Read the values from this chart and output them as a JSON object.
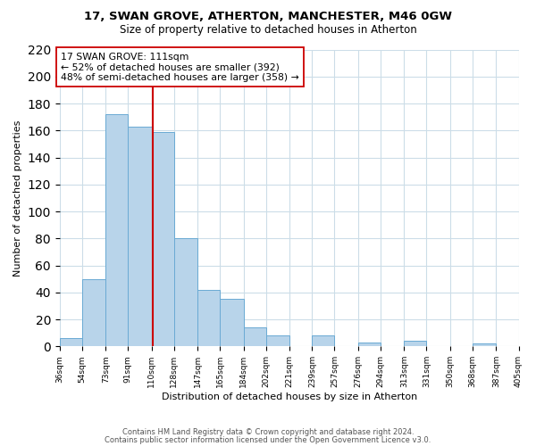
{
  "title1": "17, SWAN GROVE, ATHERTON, MANCHESTER, M46 0GW",
  "title2": "Size of property relative to detached houses in Atherton",
  "xlabel": "Distribution of detached houses by size in Atherton",
  "ylabel": "Number of detached properties",
  "bar_edges": [
    36,
    54,
    73,
    91,
    110,
    128,
    147,
    165,
    184,
    202,
    221,
    239,
    257,
    276,
    294,
    313,
    331,
    350,
    368,
    387,
    405
  ],
  "bar_heights": [
    6,
    50,
    172,
    163,
    159,
    80,
    42,
    35,
    14,
    8,
    0,
    8,
    0,
    3,
    0,
    4,
    0,
    0,
    2,
    0
  ],
  "tick_labels": [
    "36sqm",
    "54sqm",
    "73sqm",
    "91sqm",
    "110sqm",
    "128sqm",
    "147sqm",
    "165sqm",
    "184sqm",
    "202sqm",
    "221sqm",
    "239sqm",
    "257sqm",
    "276sqm",
    "294sqm",
    "313sqm",
    "331sqm",
    "350sqm",
    "368sqm",
    "387sqm",
    "405sqm"
  ],
  "bar_color": "#b8d4ea",
  "bar_edge_color": "#6aaad4",
  "vline_x": 111,
  "vline_color": "#cc0000",
  "annotation_title": "17 SWAN GROVE: 111sqm",
  "annotation_line1": "← 52% of detached houses are smaller (392)",
  "annotation_line2": "48% of semi-detached houses are larger (358) →",
  "annotation_box_color": "#ffffff",
  "annotation_box_edge": "#cc0000",
  "ylim": [
    0,
    220
  ],
  "yticks": [
    0,
    20,
    40,
    60,
    80,
    100,
    120,
    140,
    160,
    180,
    200,
    220
  ],
  "footer1": "Contains HM Land Registry data © Crown copyright and database right 2024.",
  "footer2": "Contains public sector information licensed under the Open Government Licence v3.0.",
  "background_color": "#ffffff",
  "grid_color": "#ccdde8"
}
